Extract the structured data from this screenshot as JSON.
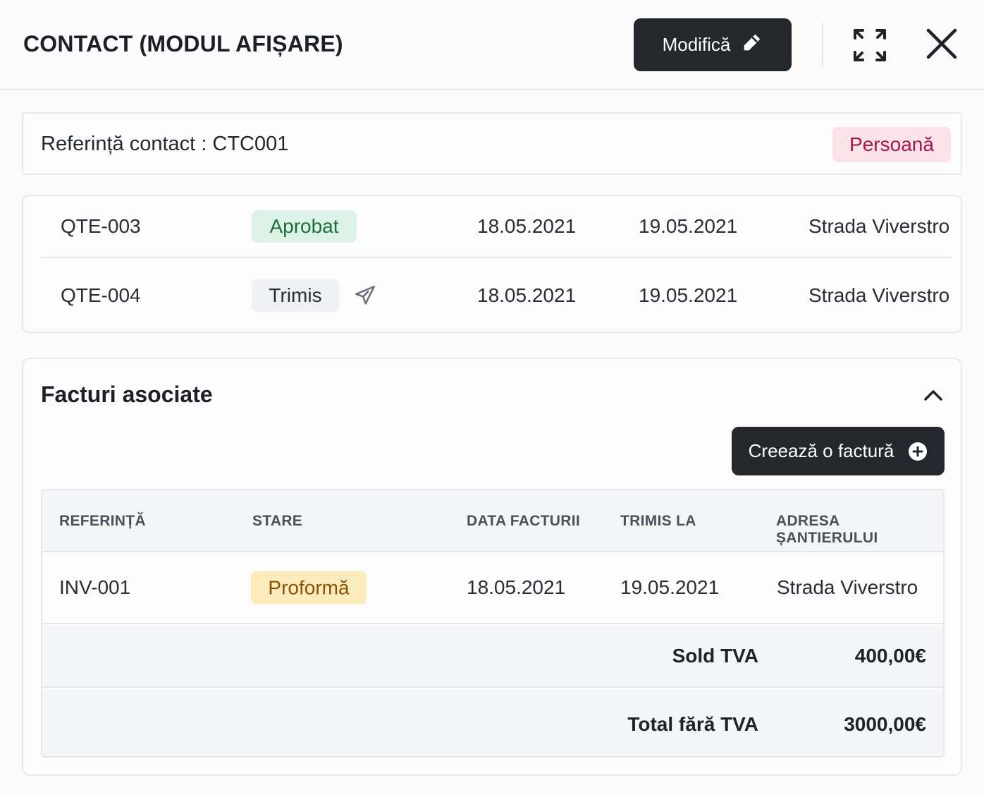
{
  "header": {
    "title": "CONTACT (MODUL AFIȘARE)",
    "edit_label": "Modifică"
  },
  "contact": {
    "reference_text": "Referință contact : CTC001",
    "type_badge": "Persoană"
  },
  "quotes": {
    "rows": [
      {
        "reference": "QTE-003",
        "status": "Aprobat",
        "date": "18.05.2021",
        "sent": "19.05.2021",
        "address": "Strada Viverstro"
      },
      {
        "reference": "QTE-004",
        "status": "Trimis",
        "date": "18.05.2021",
        "sent": "19.05.2021",
        "address": "Strada Viverstro"
      }
    ]
  },
  "invoices": {
    "title": "Facturi asociate",
    "create_label": "Creează o factură",
    "columns": [
      "REFERINȚĂ",
      "STARE",
      "DATA FACTURII",
      "TRIMIS LA",
      "ADRESA ȘANTIERULUI"
    ],
    "rows": [
      {
        "reference": "INV-001",
        "status": "Proformă",
        "date": "18.05.2021",
        "sent": "19.05.2021",
        "address": "Strada Viverstro"
      }
    ],
    "totals": [
      {
        "label": "Sold TVA",
        "value": "400,00€"
      },
      {
        "label": "Total fără TVA",
        "value": "3000,00€"
      }
    ]
  },
  "colors": {
    "primary_button": "#23282e",
    "badge_person_bg": "#fbe2e8",
    "badge_person_text": "#a8174a",
    "badge_approved_bg": "#dcf2e6",
    "badge_approved_text": "#1c6f3d",
    "badge_proforma_bg": "#fcebbd",
    "badge_proforma_text": "#8a5206"
  },
  "icons": {
    "edit": "pencil-icon",
    "expand": "expand-icon",
    "close": "close-icon",
    "send": "paper-plane-icon",
    "collapse": "chevron-up-icon",
    "add": "plus-circle-icon"
  }
}
